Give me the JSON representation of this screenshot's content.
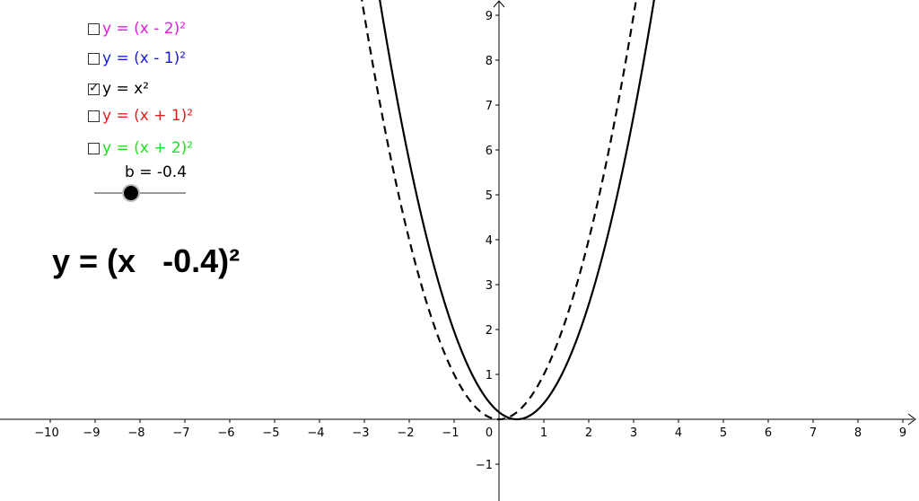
{
  "checkboxes": [
    {
      "label": "y = (x - 2)²",
      "color": "#e21ce2",
      "checked": false
    },
    {
      "label": "y = (x - 1)²",
      "color": "#1a1ad6",
      "checked": false
    },
    {
      "label": "y = x²",
      "color": "#000000",
      "checked": true
    },
    {
      "label": "y = (x + 1)²",
      "color": "#e0201e",
      "checked": false
    },
    {
      "label": "y = (x + 2)²",
      "color": "#1ee01e",
      "checked": false
    }
  ],
  "slider": {
    "label": "b = -0.4",
    "value": -0.4,
    "min": -2,
    "max": 2
  },
  "formula": {
    "prefix": "y = (x",
    "value": "-0.4",
    "suffix": ")²"
  },
  "chart_data": {
    "type": "line",
    "xlim": [
      -11,
      9.3
    ],
    "ylim": [
      -1.8,
      9.3
    ],
    "grid": false,
    "x_ticks": [
      -10,
      -9,
      -8,
      -7,
      -6,
      -5,
      -4,
      -3,
      -2,
      -1,
      0,
      1,
      2,
      3,
      4,
      5,
      6,
      7,
      8,
      9
    ],
    "y_ticks": [
      -1,
      1,
      2,
      3,
      4,
      5,
      6,
      7,
      8,
      9
    ],
    "series": [
      {
        "function": "x^2",
        "style": "dashed",
        "color": "#000000"
      },
      {
        "function": "(x - 0.4)^2",
        "style": "solid",
        "color": "#000000"
      }
    ]
  }
}
